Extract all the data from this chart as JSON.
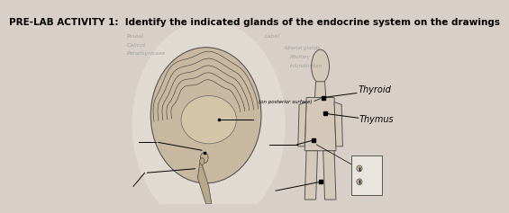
{
  "title": "PRE-LAB ACTIVITY 1:  Identify the indicated glands of the endocrine system on the drawings",
  "title_fontsize": 7.5,
  "background_color": "#d8d0c8",
  "faded_labels_left": [
    "Pineal",
    "Calicot",
    "Parathyricase"
  ],
  "faded_labels_right": [
    "Label",
    "Adrenal glands",
    "Pituitary",
    "Infundibulum"
  ],
  "annotation_text": "(on posterior surface)",
  "thyroid_label": "Thyroid",
  "thymus_label": "Thymus"
}
